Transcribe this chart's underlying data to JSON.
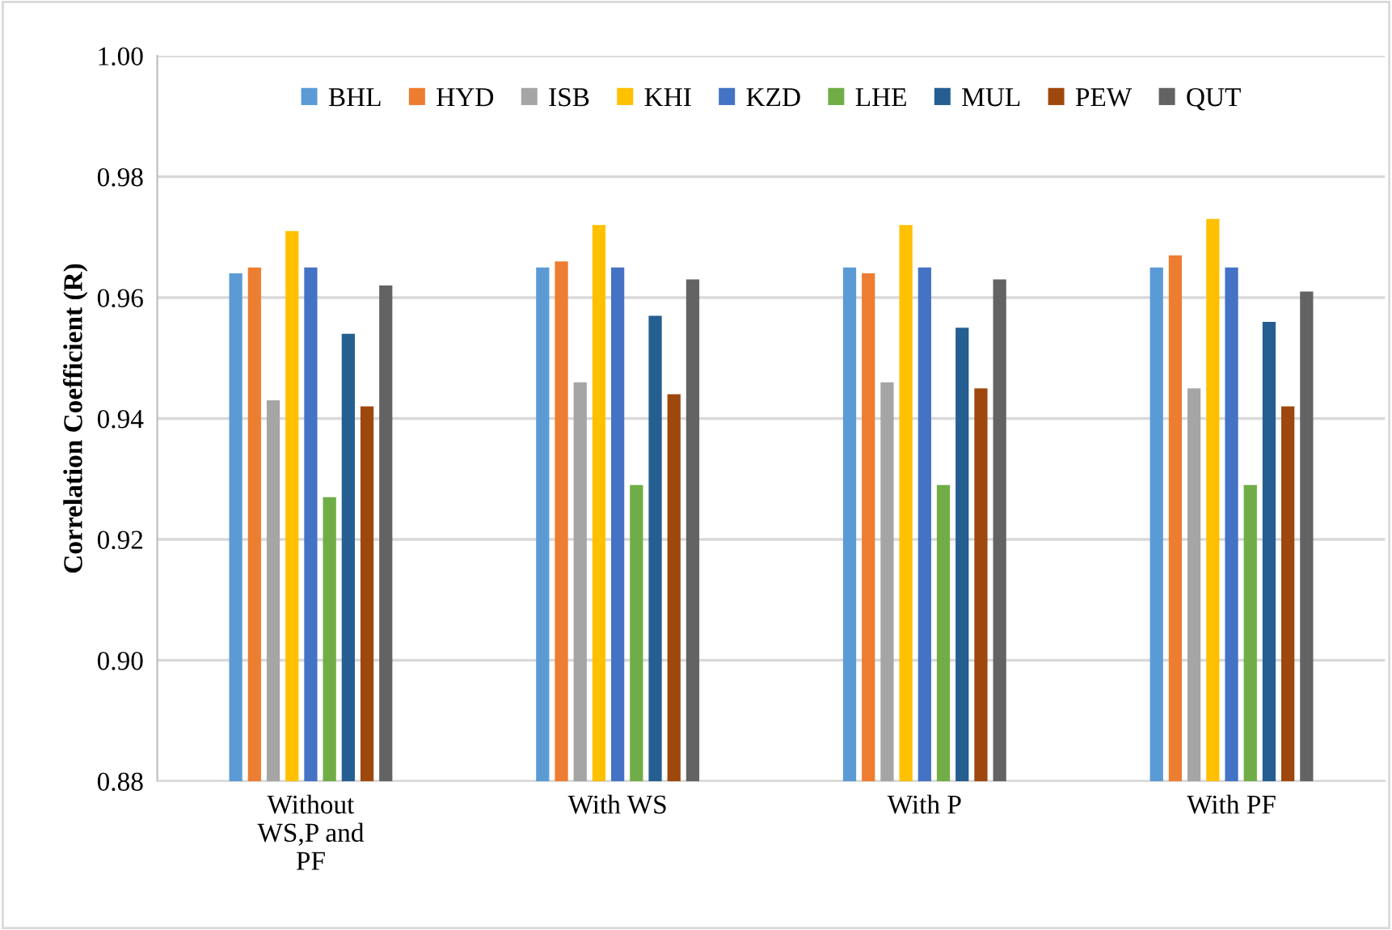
{
  "chart_data": {
    "type": "bar",
    "ylabel": "Correlation Coefficient (R)",
    "categories": [
      "Without\nWS,P and\nPF",
      "With WS",
      "With P",
      "With PF"
    ],
    "series": [
      {
        "name": "BHL",
        "color": "#5b9bd5",
        "values": [
          0.964,
          0.965,
          0.965,
          0.965
        ]
      },
      {
        "name": "HYD",
        "color": "#ed7d31",
        "values": [
          0.965,
          0.966,
          0.964,
          0.967
        ]
      },
      {
        "name": "ISB",
        "color": "#a5a5a5",
        "values": [
          0.943,
          0.946,
          0.946,
          0.945
        ]
      },
      {
        "name": "KHI",
        "color": "#ffc000",
        "values": [
          0.971,
          0.972,
          0.972,
          0.973
        ]
      },
      {
        "name": "KZD",
        "color": "#4472c4",
        "values": [
          0.965,
          0.965,
          0.965,
          0.965
        ]
      },
      {
        "name": "LHE",
        "color": "#70ad47",
        "values": [
          0.927,
          0.929,
          0.929,
          0.929
        ]
      },
      {
        "name": "MUL",
        "color": "#255e91",
        "values": [
          0.954,
          0.957,
          0.955,
          0.956
        ]
      },
      {
        "name": "PEW",
        "color": "#9e480e",
        "values": [
          0.942,
          0.944,
          0.945,
          0.942
        ]
      },
      {
        "name": "QUT",
        "color": "#636363",
        "values": [
          0.962,
          0.963,
          0.963,
          0.961
        ]
      }
    ],
    "ylim": [
      0.88,
      1.0
    ],
    "yticks": [
      {
        "value": 0.88,
        "label": "0.88"
      },
      {
        "value": 0.9,
        "label": "0.90"
      },
      {
        "value": 0.92,
        "label": "0.92"
      },
      {
        "value": 0.94,
        "label": "0.94"
      },
      {
        "value": 0.96,
        "label": "0.96"
      },
      {
        "value": 0.98,
        "label": "0.98"
      },
      {
        "value": 1.0,
        "label": "1.00"
      }
    ],
    "grid": "y",
    "legend": "top"
  }
}
